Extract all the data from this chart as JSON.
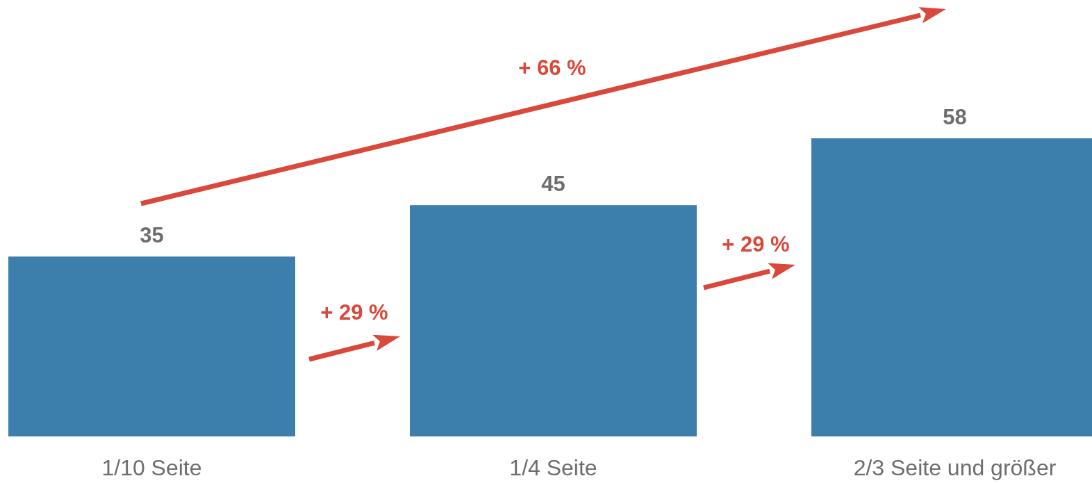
{
  "chart_data": {
    "type": "bar",
    "categories": [
      "1/10 Seite",
      "1/4 Seite",
      "2/3 Seite und größer"
    ],
    "values": [
      35,
      45,
      58
    ],
    "color": "#3c7fac",
    "data_labels": true,
    "annotations": [
      "+ 29 %",
      "+ 29 %",
      "+ 66 %"
    ]
  }
}
